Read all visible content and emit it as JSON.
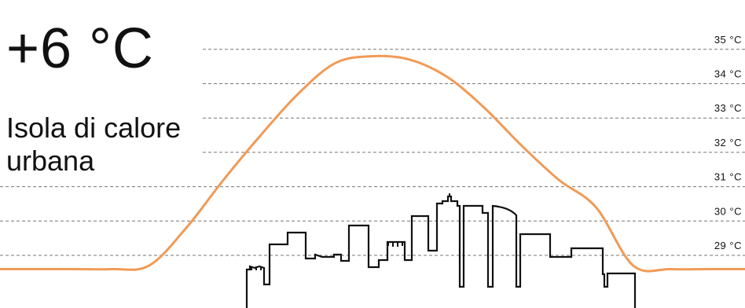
{
  "headline": {
    "value": "+6 °C",
    "caption_line1": "Isola di calore",
    "caption_line2": "urbana"
  },
  "chart_data": {
    "type": "line",
    "series": [
      {
        "x": [
          0,
          5,
          10,
          15,
          20,
          25,
          30,
          35,
          40,
          45,
          50,
          55,
          60,
          65,
          70,
          75,
          80,
          85,
          90,
          95,
          100
        ],
        "values": [
          28.6,
          28.6,
          28.6,
          28.6,
          28.7,
          29.8,
          31.2,
          32.5,
          33.7,
          34.6,
          34.8,
          34.7,
          34.2,
          33.3,
          32.2,
          31.2,
          30.4,
          28.7,
          28.6,
          28.6,
          28.6
        ]
      }
    ],
    "ylim": [
      28.4,
      35.3
    ],
    "xlim": [
      0,
      100
    ],
    "grid": true,
    "y_ticks": [
      29,
      30,
      31,
      32,
      33,
      34,
      35
    ],
    "y_tick_labels": [
      "29 °C",
      "30 °C",
      "31 °C",
      "32 °C",
      "33 °C",
      "34 °C",
      "35 °C"
    ],
    "line_color": "#f09a56",
    "grid_color": "#777777",
    "skyline_color": "#111111"
  }
}
